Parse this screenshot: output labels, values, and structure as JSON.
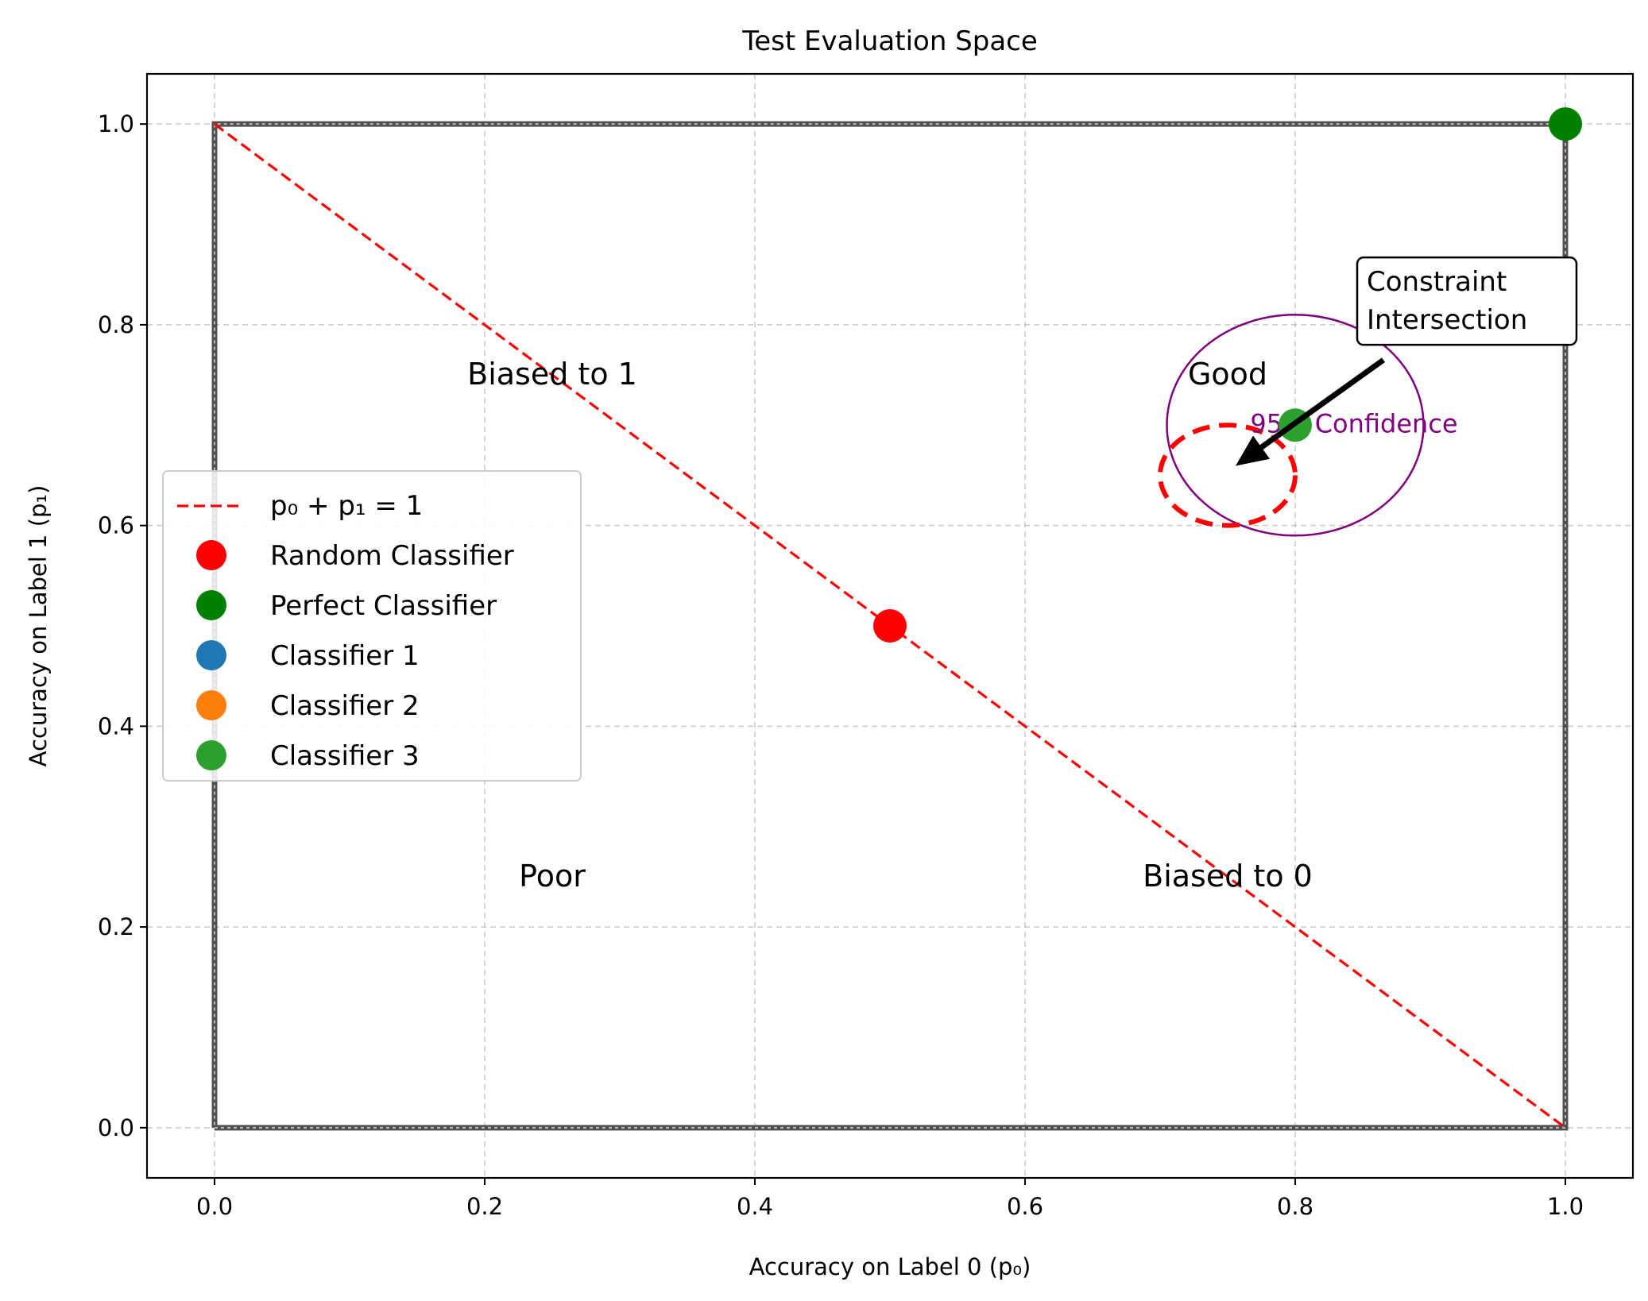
{
  "chart_data": {
    "type": "scatter",
    "title": "Test Evaluation Space",
    "xlabel": "Accuracy on Label 0 (p₀)",
    "ylabel": "Accuracy on Label 1 (p₁)",
    "xlim": [
      -0.05,
      1.05
    ],
    "ylim": [
      -0.05,
      1.05
    ],
    "xticks": [
      "0.0",
      "0.2",
      "0.4",
      "0.6",
      "0.8",
      "1.0"
    ],
    "yticks": [
      "0.0",
      "0.2",
      "0.4",
      "0.6",
      "0.8",
      "1.0"
    ],
    "grid": true,
    "legend_position": "center-left",
    "bounding_box": {
      "x": [
        0,
        1,
        1,
        0,
        0
      ],
      "y": [
        0,
        0,
        1,
        1,
        0
      ],
      "color": "#333333"
    },
    "line": {
      "name": "p₀ + p₁ = 1",
      "x": [
        0,
        1
      ],
      "y": [
        1,
        0
      ],
      "color": "#ff0000",
      "style": "dashed"
    },
    "series": [
      {
        "name": "Random Classifier",
        "color": "#ff0000",
        "x": [
          0.5
        ],
        "y": [
          0.5
        ]
      },
      {
        "name": "Perfect Classifier",
        "color": "#008000",
        "x": [
          1.0
        ],
        "y": [
          1.0
        ]
      },
      {
        "name": "Classifier 1",
        "color": "#1f77b4",
        "x": [],
        "y": []
      },
      {
        "name": "Classifier 2",
        "color": "#ff7f0e",
        "x": [],
        "y": []
      },
      {
        "name": "Classifier 3",
        "color": "#2ca02c",
        "x": [
          0.8
        ],
        "y": [
          0.7
        ]
      }
    ],
    "ellipses": [
      {
        "cx": 0.8,
        "cy": 0.7,
        "rx": 0.095,
        "ry": 0.11,
        "color": "#800080",
        "style": "solid"
      },
      {
        "cx": 0.75,
        "cy": 0.65,
        "rx": 0.05,
        "ry": 0.05,
        "color": "#ff0000",
        "style": "dashed"
      }
    ],
    "region_labels": [
      {
        "text": "Biased to 1",
        "x": 0.25,
        "y": 0.75
      },
      {
        "text": "Good",
        "x": 0.75,
        "y": 0.75
      },
      {
        "text": "Poor",
        "x": 0.25,
        "y": 0.25
      },
      {
        "text": "Biased to 0",
        "x": 0.75,
        "y": 0.25
      }
    ],
    "annotations": [
      {
        "text": "95% Confidence",
        "x": 0.8,
        "y": 0.7,
        "color": "#800080"
      }
    ],
    "callout": {
      "lines": [
        "Constraint",
        "Intersection"
      ],
      "text_x": 0.85,
      "text_y": 0.78,
      "arrow_to_x": 0.75,
      "arrow_to_y": 0.65
    }
  }
}
